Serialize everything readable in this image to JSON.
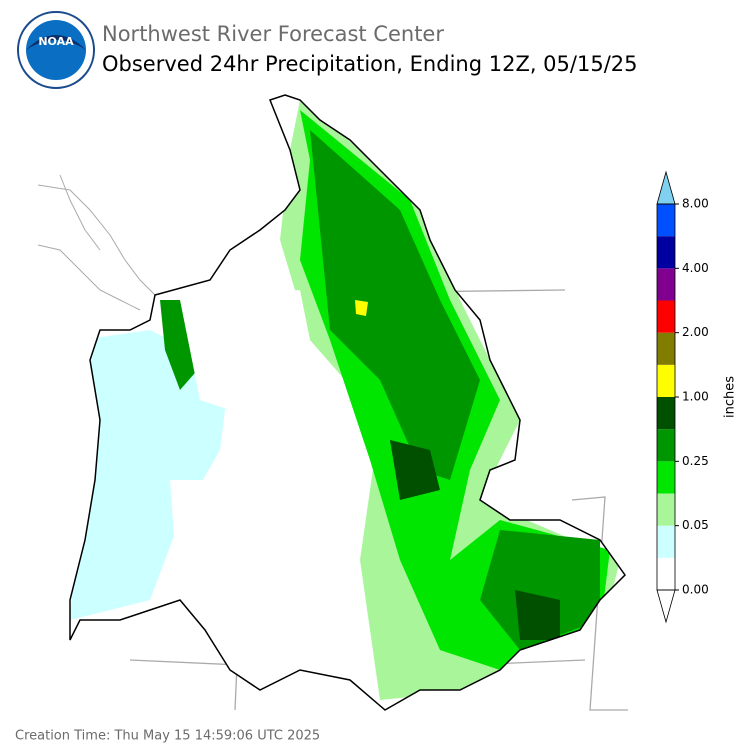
{
  "header": {
    "agency": "Northwest River Forecast Center",
    "title": "Observed 24hr Precipitation, Ending 12Z, 05/15/25",
    "logo": "NOAA"
  },
  "colorbar": {
    "unit": "inches",
    "ticks": [
      "0.00",
      "0.05",
      "0.25",
      "1.00",
      "2.00",
      "4.00",
      "8.00"
    ],
    "colors": [
      "#ffffff",
      "#ccffff",
      "#a8f59a",
      "#00e600",
      "#009600",
      "#005000",
      "#ffff00",
      "#807d00",
      "#ff0000",
      "#800090",
      "#0000a0",
      "#0050ff"
    ],
    "under_color": "#ffffff",
    "over_color": "#80d0f0"
  },
  "footer": {
    "creation": "Creation Time: Thu May 15 14:59:06 UTC 2025"
  }
}
